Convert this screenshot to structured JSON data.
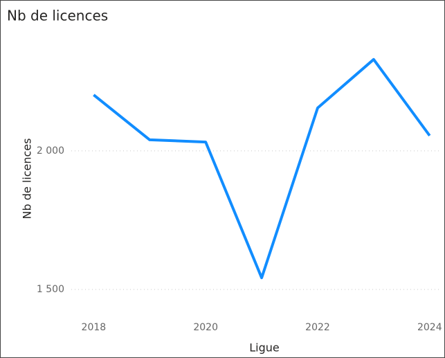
{
  "chart_data": {
    "type": "line",
    "title": "Nb de licences",
    "x_label": "Ligue",
    "y_label": "Nb de licences",
    "x": [
      2018,
      2019,
      2020,
      2021,
      2022,
      2023,
      2024
    ],
    "series": [
      {
        "name": "Nb de licences",
        "color": "#118dff",
        "values": [
          2202,
          2040,
          2032,
          1542,
          2155,
          2330,
          2055
        ]
      }
    ],
    "xlim": [
      2017.6,
      2024.2
    ],
    "xticks": [
      2018,
      2020,
      2022,
      2024
    ],
    "ylim": [
      1445,
      2432
    ],
    "yticks": [
      {
        "value": 1500,
        "label": "1 500"
      },
      {
        "value": 2000,
        "label": "2 000"
      }
    ],
    "grid": true
  }
}
